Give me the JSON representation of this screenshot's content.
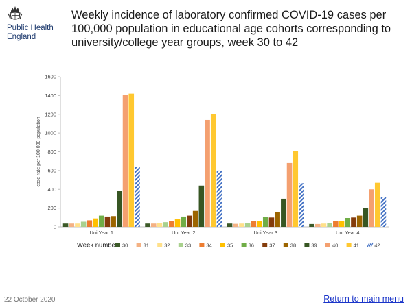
{
  "header": {
    "org_name": "Public Health\nEngland",
    "title": "Weekly incidence of laboratory confirmed COVID-19 cases per 100,000 population in educational age cohorts corresponding to university/college year groups, week 30 to 42"
  },
  "footer": {
    "date": "22 October 2020",
    "link": "Return to main menu"
  },
  "chart_data": {
    "type": "bar",
    "title": "",
    "xlabel": "",
    "ylabel": "case rate per 100,000 population",
    "ylim": [
      0,
      1600
    ],
    "yticks": [
      0,
      200,
      400,
      600,
      800,
      1000,
      1200,
      1400,
      1600
    ],
    "categories": [
      "Uni Year 1",
      "Uni Year 2",
      "Uni Year 3",
      "Uni Year 4"
    ],
    "legend_title": "Week number",
    "legend_position": "bottom",
    "grid": false,
    "series": [
      {
        "name": "30",
        "color": "#3c5a28",
        "pattern": "solid",
        "values": [
          35,
          35,
          35,
          30
        ]
      },
      {
        "name": "31",
        "color": "#f4b183",
        "pattern": "solid",
        "values": [
          35,
          35,
          32,
          30
        ]
      },
      {
        "name": "32",
        "color": "#ffe08a",
        "pattern": "solid",
        "values": [
          35,
          38,
          35,
          35
        ]
      },
      {
        "name": "33",
        "color": "#a9d18e",
        "pattern": "solid",
        "values": [
          55,
          50,
          40,
          40
        ]
      },
      {
        "name": "34",
        "color": "#ed7d31",
        "pattern": "solid",
        "values": [
          70,
          65,
          65,
          60
        ]
      },
      {
        "name": "35",
        "color": "#ffc000",
        "pattern": "solid",
        "values": [
          90,
          80,
          65,
          65
        ]
      },
      {
        "name": "36",
        "color": "#70ad47",
        "pattern": "solid",
        "values": [
          120,
          110,
          105,
          95
        ]
      },
      {
        "name": "37",
        "color": "#843c0c",
        "pattern": "solid",
        "values": [
          110,
          120,
          100,
          100
        ]
      },
      {
        "name": "38",
        "color": "#9c6500",
        "pattern": "solid",
        "values": [
          115,
          170,
          155,
          120
        ]
      },
      {
        "name": "39",
        "color": "#375623",
        "pattern": "solid",
        "values": [
          380,
          440,
          300,
          200
        ]
      },
      {
        "name": "40",
        "color": "#f4a070",
        "pattern": "solid",
        "values": [
          1410,
          1140,
          680,
          400
        ]
      },
      {
        "name": "41",
        "color": "#ffc830",
        "pattern": "solid",
        "values": [
          1420,
          1200,
          810,
          470
        ]
      },
      {
        "name": "42",
        "color": "#4472c4",
        "pattern": "hatched",
        "values": [
          640,
          600,
          465,
          315
        ]
      }
    ]
  }
}
